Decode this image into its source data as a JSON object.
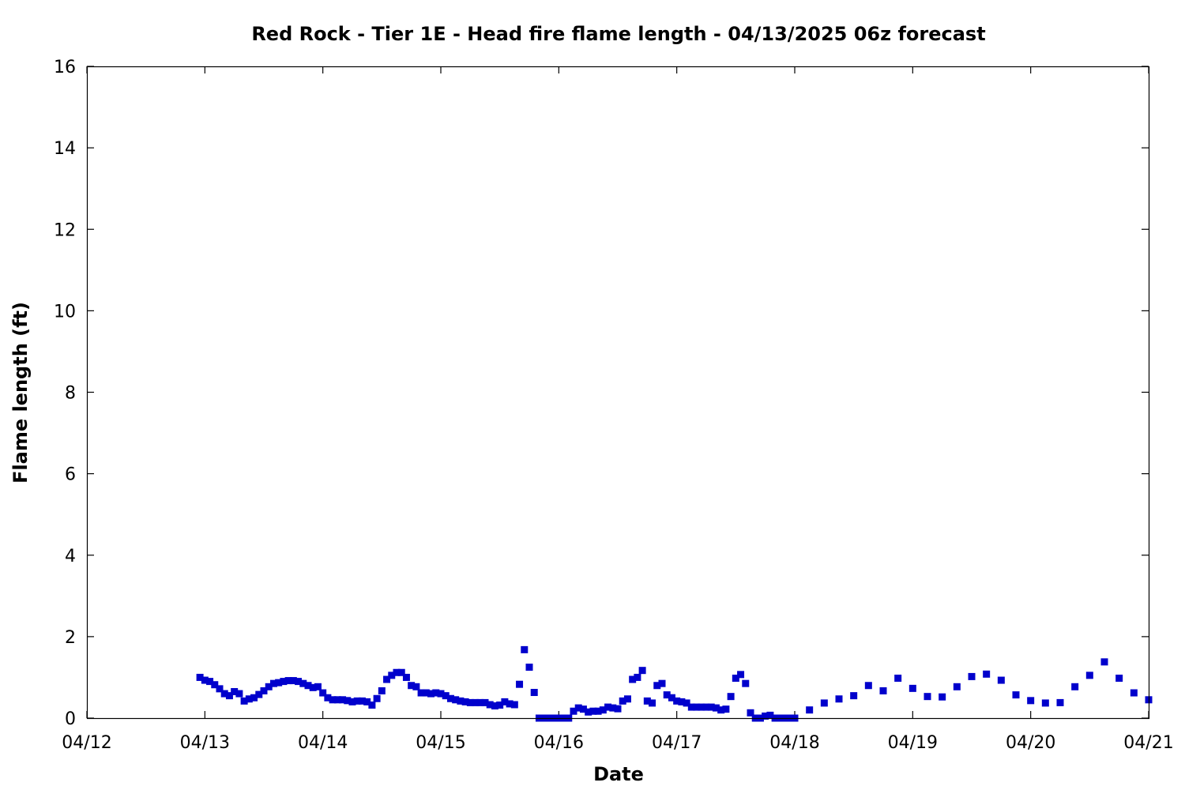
{
  "chart_data": {
    "type": "scatter",
    "title": "Red Rock - Tier 1E - Head fire flame length - 04/13/2025 06z forecast",
    "xlabel": "Date",
    "ylabel": "Flame length (ft)",
    "xlim": [
      "2025-04-12 00:00",
      "2025-04-21 00:00"
    ],
    "ylim": [
      0,
      16
    ],
    "x_ticks": [
      "04/12",
      "04/13",
      "04/14",
      "04/15",
      "04/16",
      "04/17",
      "04/18",
      "04/19",
      "04/20",
      "04/21"
    ],
    "y_ticks": [
      0,
      2,
      4,
      6,
      8,
      10,
      12,
      14,
      16
    ],
    "grid": false,
    "marker": "square",
    "color": "#0000cc",
    "series": [
      {
        "points": [
          [
            "2025-04-12 23:00",
            1.0
          ],
          [
            "2025-04-13 00:00",
            0.93
          ],
          [
            "2025-04-13 01:00",
            0.9
          ],
          [
            "2025-04-13 02:00",
            0.82
          ],
          [
            "2025-04-13 03:00",
            0.72
          ],
          [
            "2025-04-13 04:00",
            0.6
          ],
          [
            "2025-04-13 05:00",
            0.55
          ],
          [
            "2025-04-13 06:00",
            0.65
          ],
          [
            "2025-04-13 07:00",
            0.6
          ],
          [
            "2025-04-13 08:00",
            0.42
          ],
          [
            "2025-04-13 09:00",
            0.47
          ],
          [
            "2025-04-13 10:00",
            0.5
          ],
          [
            "2025-04-13 11:00",
            0.58
          ],
          [
            "2025-04-13 12:00",
            0.67
          ],
          [
            "2025-04-13 13:00",
            0.77
          ],
          [
            "2025-04-13 14:00",
            0.85
          ],
          [
            "2025-04-13 15:00",
            0.87
          ],
          [
            "2025-04-13 16:00",
            0.9
          ],
          [
            "2025-04-13 17:00",
            0.92
          ],
          [
            "2025-04-13 18:00",
            0.92
          ],
          [
            "2025-04-13 19:00",
            0.9
          ],
          [
            "2025-04-13 20:00",
            0.85
          ],
          [
            "2025-04-13 21:00",
            0.8
          ],
          [
            "2025-04-13 22:00",
            0.75
          ],
          [
            "2025-04-13 23:00",
            0.77
          ],
          [
            "2025-04-14 00:00",
            0.62
          ],
          [
            "2025-04-14 01:00",
            0.5
          ],
          [
            "2025-04-14 02:00",
            0.45
          ],
          [
            "2025-04-14 03:00",
            0.45
          ],
          [
            "2025-04-14 04:00",
            0.45
          ],
          [
            "2025-04-14 05:00",
            0.43
          ],
          [
            "2025-04-14 06:00",
            0.4
          ],
          [
            "2025-04-14 07:00",
            0.42
          ],
          [
            "2025-04-14 08:00",
            0.42
          ],
          [
            "2025-04-14 09:00",
            0.4
          ],
          [
            "2025-04-14 10:00",
            0.32
          ],
          [
            "2025-04-14 11:00",
            0.48
          ],
          [
            "2025-04-14 12:00",
            0.67
          ],
          [
            "2025-04-14 13:00",
            0.95
          ],
          [
            "2025-04-14 14:00",
            1.05
          ],
          [
            "2025-04-14 15:00",
            1.12
          ],
          [
            "2025-04-14 16:00",
            1.12
          ],
          [
            "2025-04-14 17:00",
            1.0
          ],
          [
            "2025-04-14 18:00",
            0.8
          ],
          [
            "2025-04-14 19:00",
            0.77
          ],
          [
            "2025-04-14 20:00",
            0.62
          ],
          [
            "2025-04-14 21:00",
            0.62
          ],
          [
            "2025-04-14 22:00",
            0.6
          ],
          [
            "2025-04-14 23:00",
            0.62
          ],
          [
            "2025-04-15 00:00",
            0.6
          ],
          [
            "2025-04-15 01:00",
            0.55
          ],
          [
            "2025-04-15 02:00",
            0.48
          ],
          [
            "2025-04-15 03:00",
            0.45
          ],
          [
            "2025-04-15 04:00",
            0.42
          ],
          [
            "2025-04-15 05:00",
            0.4
          ],
          [
            "2025-04-15 06:00",
            0.38
          ],
          [
            "2025-04-15 07:00",
            0.38
          ],
          [
            "2025-04-15 08:00",
            0.38
          ],
          [
            "2025-04-15 09:00",
            0.38
          ],
          [
            "2025-04-15 10:00",
            0.33
          ],
          [
            "2025-04-15 11:00",
            0.3
          ],
          [
            "2025-04-15 12:00",
            0.32
          ],
          [
            "2025-04-15 13:00",
            0.4
          ],
          [
            "2025-04-15 14:00",
            0.35
          ],
          [
            "2025-04-15 15:00",
            0.33
          ],
          [
            "2025-04-15 16:00",
            0.83
          ],
          [
            "2025-04-15 17:00",
            1.68
          ],
          [
            "2025-04-15 18:00",
            1.25
          ],
          [
            "2025-04-15 19:00",
            0.63
          ],
          [
            "2025-04-15 20:00",
            0.0
          ],
          [
            "2025-04-15 21:00",
            0.0
          ],
          [
            "2025-04-15 22:00",
            0.0
          ],
          [
            "2025-04-15 23:00",
            0.0
          ],
          [
            "2025-04-16 00:00",
            0.0
          ],
          [
            "2025-04-16 01:00",
            0.0
          ],
          [
            "2025-04-16 02:00",
            0.0
          ],
          [
            "2025-04-16 03:00",
            0.17
          ],
          [
            "2025-04-16 04:00",
            0.25
          ],
          [
            "2025-04-16 05:00",
            0.22
          ],
          [
            "2025-04-16 06:00",
            0.15
          ],
          [
            "2025-04-16 07:00",
            0.17
          ],
          [
            "2025-04-16 08:00",
            0.17
          ],
          [
            "2025-04-16 09:00",
            0.2
          ],
          [
            "2025-04-16 10:00",
            0.27
          ],
          [
            "2025-04-16 11:00",
            0.25
          ],
          [
            "2025-04-16 12:00",
            0.23
          ],
          [
            "2025-04-16 13:00",
            0.42
          ],
          [
            "2025-04-16 14:00",
            0.47
          ],
          [
            "2025-04-16 15:00",
            0.95
          ],
          [
            "2025-04-16 16:00",
            1.0
          ],
          [
            "2025-04-16 17:00",
            1.17
          ],
          [
            "2025-04-16 18:00",
            0.42
          ],
          [
            "2025-04-16 19:00",
            0.37
          ],
          [
            "2025-04-16 20:00",
            0.8
          ],
          [
            "2025-04-16 21:00",
            0.85
          ],
          [
            "2025-04-16 22:00",
            0.57
          ],
          [
            "2025-04-16 23:00",
            0.5
          ],
          [
            "2025-04-17 00:00",
            0.42
          ],
          [
            "2025-04-17 01:00",
            0.4
          ],
          [
            "2025-04-17 02:00",
            0.37
          ],
          [
            "2025-04-17 03:00",
            0.27
          ],
          [
            "2025-04-17 04:00",
            0.27
          ],
          [
            "2025-04-17 05:00",
            0.27
          ],
          [
            "2025-04-17 06:00",
            0.27
          ],
          [
            "2025-04-17 07:00",
            0.27
          ],
          [
            "2025-04-17 08:00",
            0.25
          ],
          [
            "2025-04-17 09:00",
            0.2
          ],
          [
            "2025-04-17 10:00",
            0.22
          ],
          [
            "2025-04-17 11:00",
            0.53
          ],
          [
            "2025-04-17 12:00",
            0.98
          ],
          [
            "2025-04-17 13:00",
            1.07
          ],
          [
            "2025-04-17 14:00",
            0.85
          ],
          [
            "2025-04-17 15:00",
            0.13
          ],
          [
            "2025-04-17 16:00",
            0.0
          ],
          [
            "2025-04-17 17:00",
            0.0
          ],
          [
            "2025-04-17 18:00",
            0.05
          ],
          [
            "2025-04-17 19:00",
            0.07
          ],
          [
            "2025-04-17 20:00",
            0.0
          ],
          [
            "2025-04-17 21:00",
            0.0
          ],
          [
            "2025-04-17 22:00",
            0.0
          ],
          [
            "2025-04-17 23:00",
            0.0
          ],
          [
            "2025-04-18 00:00",
            0.0
          ],
          [
            "2025-04-18 03:00",
            0.2
          ],
          [
            "2025-04-18 06:00",
            0.37
          ],
          [
            "2025-04-18 09:00",
            0.47
          ],
          [
            "2025-04-18 12:00",
            0.55
          ],
          [
            "2025-04-18 15:00",
            0.8
          ],
          [
            "2025-04-18 18:00",
            0.67
          ],
          [
            "2025-04-18 21:00",
            0.98
          ],
          [
            "2025-04-19 00:00",
            0.73
          ],
          [
            "2025-04-19 03:00",
            0.53
          ],
          [
            "2025-04-19 06:00",
            0.52
          ],
          [
            "2025-04-19 09:00",
            0.77
          ],
          [
            "2025-04-19 12:00",
            1.02
          ],
          [
            "2025-04-19 15:00",
            1.08
          ],
          [
            "2025-04-19 18:00",
            0.93
          ],
          [
            "2025-04-19 21:00",
            0.57
          ],
          [
            "2025-04-20 00:00",
            0.43
          ],
          [
            "2025-04-20 03:00",
            0.37
          ],
          [
            "2025-04-20 06:00",
            0.38
          ],
          [
            "2025-04-20 09:00",
            0.77
          ],
          [
            "2025-04-20 12:00",
            1.05
          ],
          [
            "2025-04-20 15:00",
            1.38
          ],
          [
            "2025-04-20 18:00",
            0.98
          ],
          [
            "2025-04-20 21:00",
            0.62
          ],
          [
            "2025-04-21 00:00",
            0.45
          ]
        ]
      }
    ]
  }
}
